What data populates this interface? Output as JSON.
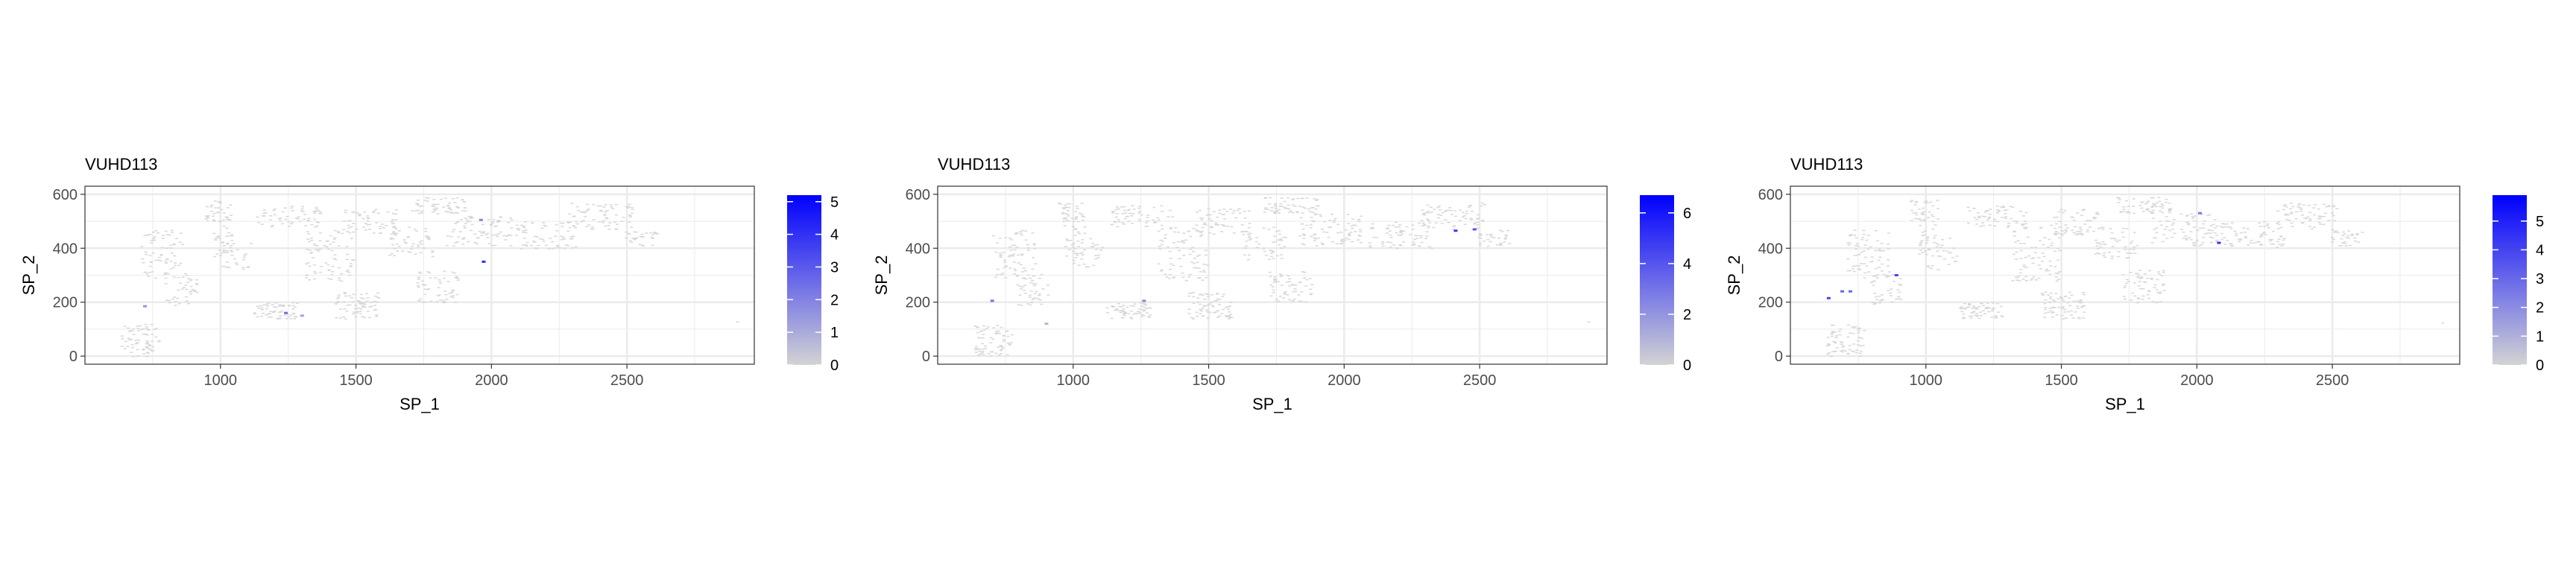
{
  "colors": {
    "low": "#d3d3d3",
    "high": "#0000ff",
    "panel_border": "#333333",
    "grid": "#ebebeb",
    "text": "#000000",
    "tick_text": "#4d4d4d"
  },
  "chart_data": [
    {
      "type": "scatter",
      "title": "VUHD113",
      "xlabel": "SP_1",
      "ylabel": "SP_2",
      "xlim": [
        500,
        2970
      ],
      "ylim": [
        -30,
        630
      ],
      "xticks": [
        1000,
        1500,
        2000,
        2500
      ],
      "yticks": [
        0,
        200,
        400,
        600
      ],
      "grid": true,
      "legend": {
        "position": "right",
        "min": 0,
        "max": 5.2,
        "ticks": [
          0,
          1,
          2,
          3,
          4,
          5
        ]
      },
      "points": [
        {
          "x": 720,
          "y": 185,
          "value": 1.5
        },
        {
          "x": 1240,
          "y": 160,
          "value": 2.5
        },
        {
          "x": 1970,
          "y": 350,
          "value": 4.0
        },
        {
          "x": 1960,
          "y": 505,
          "value": 2.0
        },
        {
          "x": 1300,
          "y": 150,
          "value": 1.2
        }
      ]
    },
    {
      "type": "scatter",
      "title": "VUHD113",
      "xlabel": "SP_1",
      "ylabel": "SP_2",
      "xlim": [
        500,
        2970
      ],
      "ylim": [
        -30,
        630
      ],
      "xticks": [
        1000,
        1500,
        2000,
        2500
      ],
      "yticks": [
        0,
        200,
        400,
        600
      ],
      "grid": true,
      "legend": {
        "position": "right",
        "min": 0,
        "max": 6.7,
        "ticks": [
          0,
          2,
          4,
          6
        ]
      },
      "points": [
        {
          "x": 700,
          "y": 205,
          "value": 3.0
        },
        {
          "x": 1260,
          "y": 205,
          "value": 2.5
        },
        {
          "x": 2410,
          "y": 465,
          "value": 5.0
        },
        {
          "x": 2480,
          "y": 470,
          "value": 4.0
        },
        {
          "x": 900,
          "y": 120,
          "value": 1.0
        }
      ]
    },
    {
      "type": "scatter",
      "title": "VUHD113",
      "xlabel": "SP_1",
      "ylabel": "SP_2",
      "xlim": [
        500,
        2970
      ],
      "ylim": [
        -30,
        630
      ],
      "xticks": [
        1000,
        1500,
        2000,
        2500
      ],
      "yticks": [
        0,
        200,
        400,
        600
      ],
      "grid": true,
      "legend": {
        "position": "right",
        "min": 0,
        "max": 5.9,
        "ticks": [
          0,
          1,
          2,
          3,
          4,
          5
        ]
      },
      "points": [
        {
          "x": 640,
          "y": 215,
          "value": 4.0
        },
        {
          "x": 690,
          "y": 240,
          "value": 3.0
        },
        {
          "x": 720,
          "y": 240,
          "value": 3.0
        },
        {
          "x": 890,
          "y": 300,
          "value": 4.0
        },
        {
          "x": 2080,
          "y": 420,
          "value": 4.5
        },
        {
          "x": 2010,
          "y": 530,
          "value": 2.5
        }
      ]
    }
  ]
}
